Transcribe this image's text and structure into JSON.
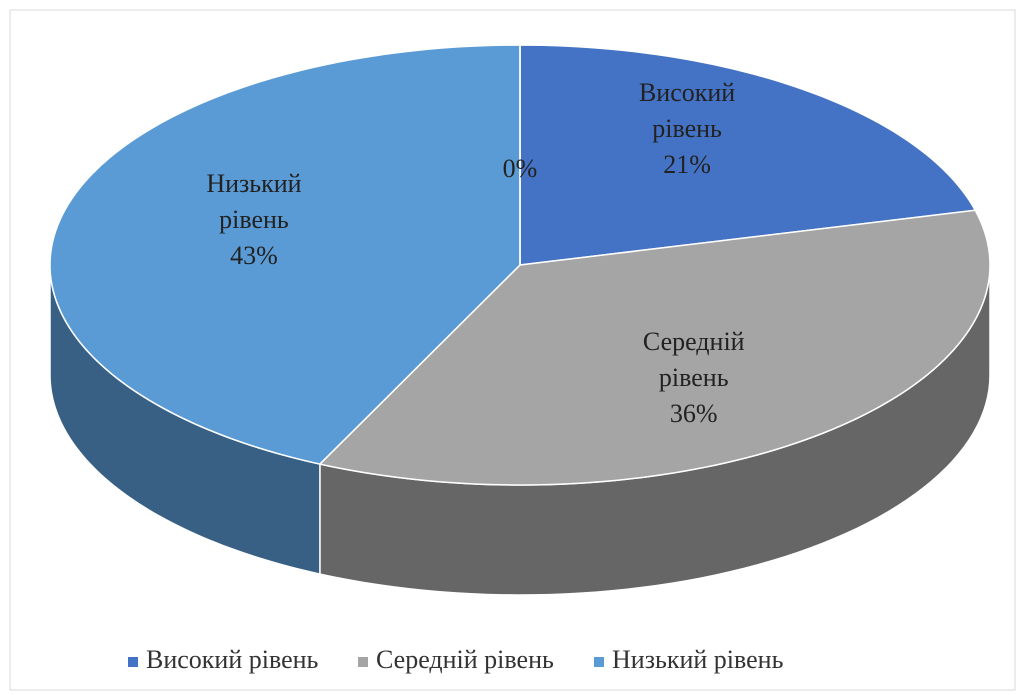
{
  "chart_data": {
    "type": "pie",
    "categories": [
      "Високий рівень",
      "Середній рівень",
      "Низький рівень",
      null
    ],
    "values": [
      21,
      36,
      43,
      0
    ],
    "value_labels": [
      "21%",
      "36%",
      "43%",
      "0%"
    ],
    "colors": [
      "#4472c4",
      "#a5a5a5",
      "#5b9bd5",
      "#ed7d31"
    ],
    "legend": "bottom"
  }
}
